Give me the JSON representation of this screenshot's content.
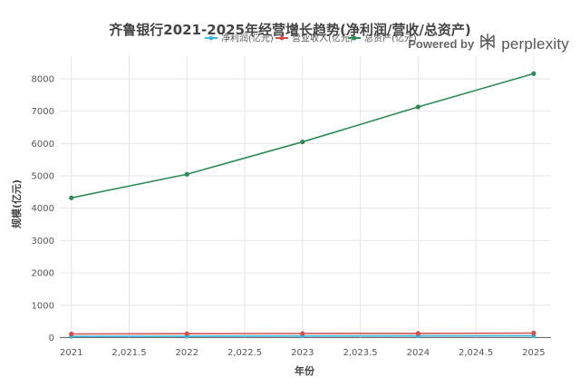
{
  "brand": {
    "powered_by": "Powered by",
    "name": "perplexity",
    "logo_icon": "perplexity-logo-icon"
  },
  "chart_data": {
    "type": "line",
    "title": "齐鲁银行2021-2025年经营增长趋势(净利润/营收/总资产)",
    "xlabel": "年份",
    "ylabel": "规模(亿元)",
    "x": [
      2021,
      2022,
      2023,
      2024,
      2025
    ],
    "xlim": [
      2020.9,
      2025.15
    ],
    "x_ticks": [
      2021,
      2021.5,
      2022,
      2022.5,
      2023,
      2023.5,
      2024,
      2024.5,
      2025
    ],
    "x_tick_labels": [
      "2021",
      "2,021.5",
      "2022",
      "2,022.5",
      "2023",
      "2,023.5",
      "2024",
      "2,024.5",
      "2025"
    ],
    "ylim": [
      -100,
      8700
    ],
    "y_ticks": [
      0,
      1000,
      2000,
      3000,
      4000,
      5000,
      6000,
      7000,
      8000
    ],
    "grid": true,
    "legend_position": "top-center",
    "series": [
      {
        "name": "净利润(亿元)",
        "color": "#3ab4d8",
        "values": [
          36,
          43,
          49,
          52,
          56
        ]
      },
      {
        "name": "营业收入(亿元)",
        "color": "#d0504c",
        "values": [
          110,
          119,
          124,
          127,
          138
        ]
      },
      {
        "name": "总资产(亿元)",
        "color": "#2e8b57",
        "values": [
          4320,
          5050,
          6050,
          7130,
          8160
        ]
      }
    ]
  }
}
